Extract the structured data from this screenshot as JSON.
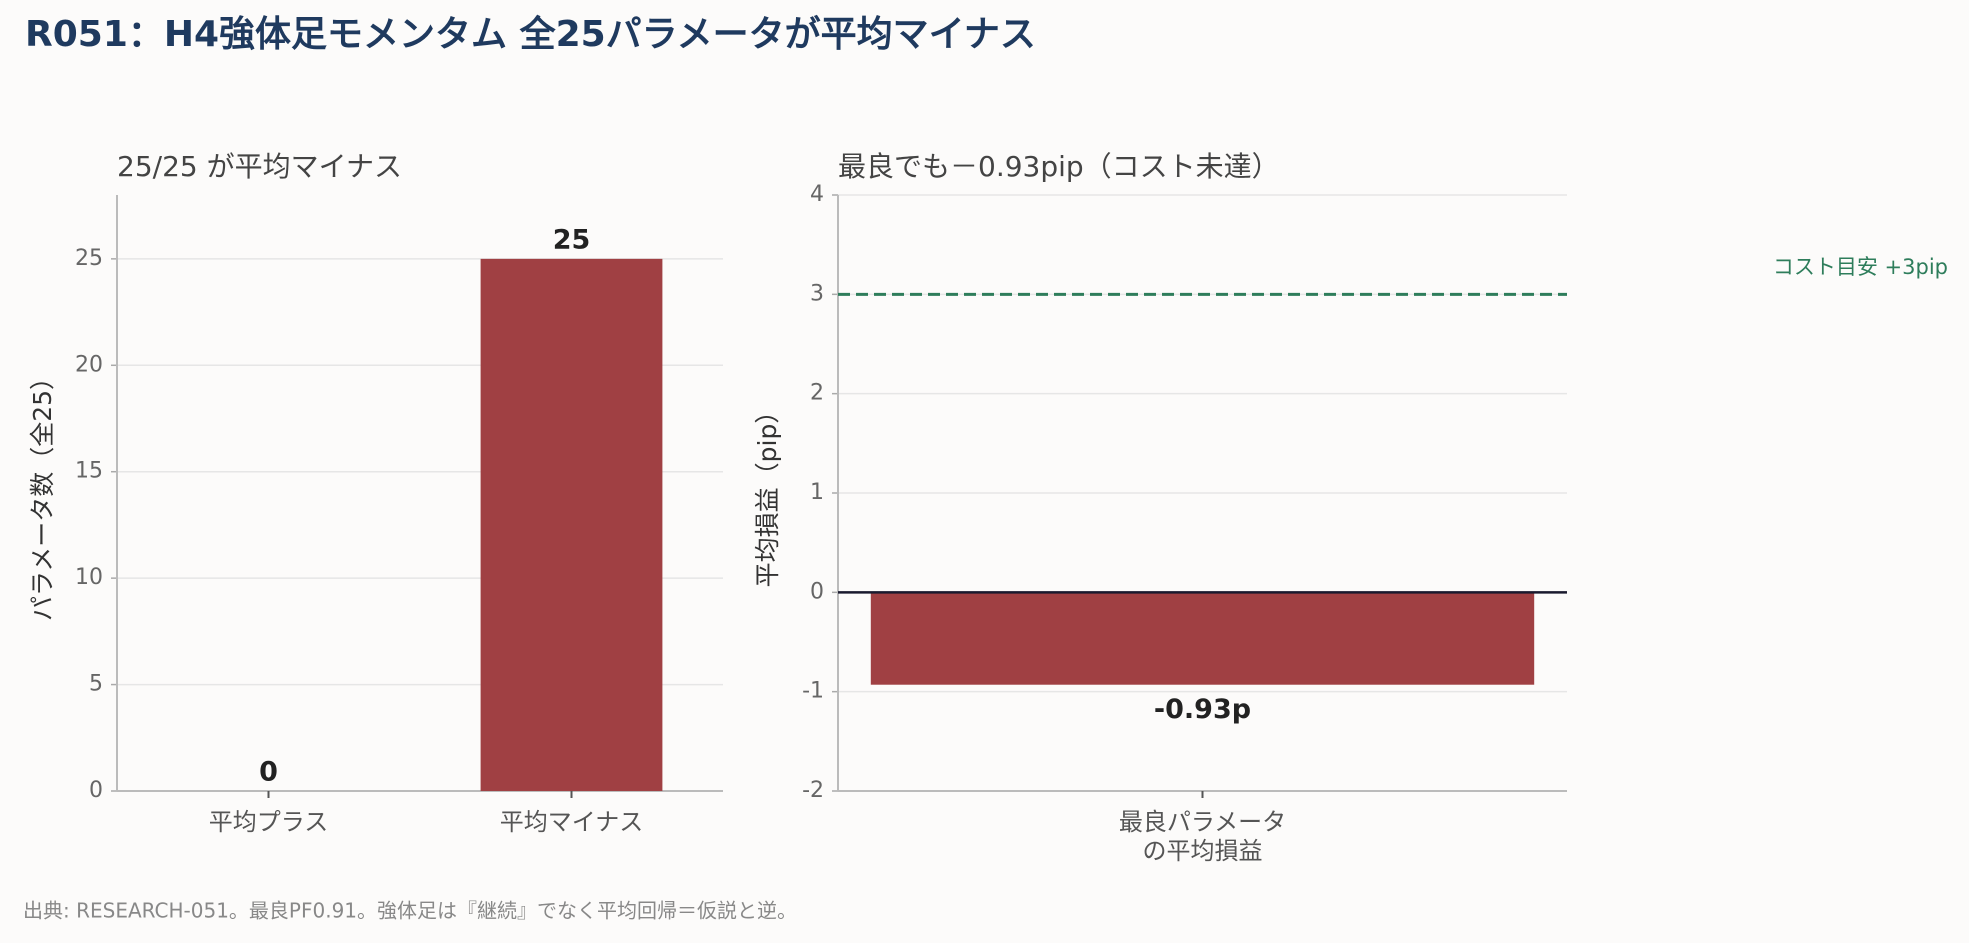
{
  "title": "R051：H4強体足モメンタム 全25パラメータが平均マイナス",
  "footer": "出典: RESEARCH-051。最良PF0.91。強体足は『継続』でなく平均回帰＝仮説と逆。",
  "chart_data": [
    {
      "type": "bar",
      "title": "25/25 が平均マイナス",
      "ylabel": "パラメータ数（全25）",
      "categories": [
        "平均プラス",
        "平均マイナス"
      ],
      "values": [
        0,
        25
      ],
      "color": "#a04043",
      "ylim": [
        0,
        28
      ],
      "yticks": [
        0,
        5,
        10,
        15,
        20,
        25
      ],
      "grid": true
    },
    {
      "type": "bar",
      "title": "最良でも－0.93pip（コスト未達）",
      "ylabel": "平均損益（pip）",
      "categories": [
        "最良パラメータ\nの平均損益"
      ],
      "values": [
        -0.93
      ],
      "value_labels": [
        "-0.93p"
      ],
      "color": "#a04043",
      "ylim": [
        -2,
        4
      ],
      "yticks": [
        -2,
        -1,
        0,
        1,
        2,
        3,
        4
      ],
      "grid": true,
      "reference_line": {
        "value": 3,
        "label": "コスト目安 +3pip",
        "color": "#2e7d5b"
      }
    }
  ]
}
